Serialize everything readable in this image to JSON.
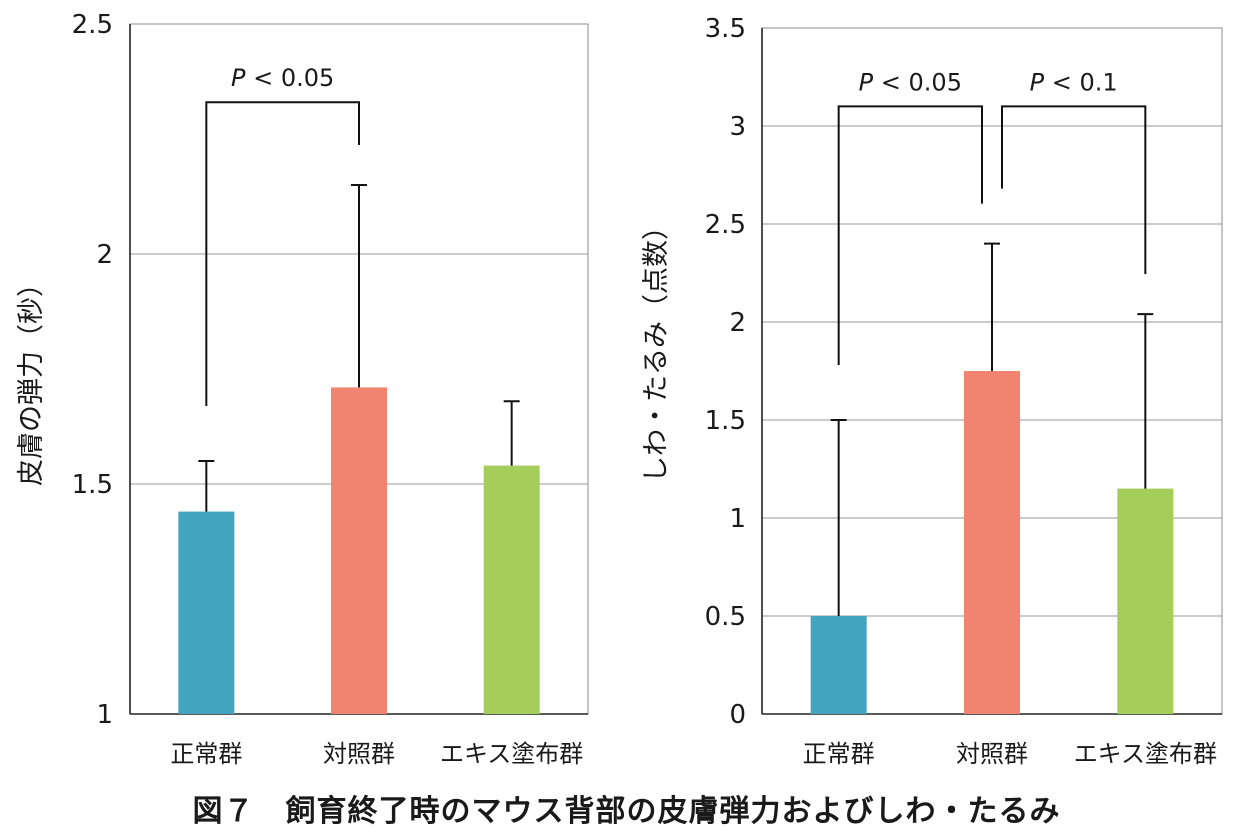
{
  "caption": "図７　飼育終了時のマウス背部の皮膚弾力およびしわ・たるみ",
  "chart_data": [
    {
      "type": "bar",
      "ylabel": "皮膚の弾力（秒）",
      "categories": [
        "正常群",
        "対照群",
        "エキス塗布群"
      ],
      "values": [
        1.44,
        1.71,
        1.54
      ],
      "errors": [
        0.11,
        0.44,
        0.14
      ],
      "ylim": [
        1,
        2.5
      ],
      "yticks": [
        1,
        1.5,
        2,
        2.5
      ],
      "ytick_labels": [
        "1",
        "1.5",
        "2",
        "2.5"
      ],
      "colors": [
        "#42a4be",
        "#f08470",
        "#a4cd59"
      ],
      "grid": true,
      "significance": [
        {
          "from": 0,
          "to": 1,
          "p": "P",
          "label": " < 0.05",
          "y_bracket": 2.33
        }
      ]
    },
    {
      "type": "bar",
      "ylabel": "しわ・たるみ（点数）",
      "categories": [
        "正常群",
        "対照群",
        "エキス塗布群"
      ],
      "values": [
        0.5,
        1.75,
        1.15
      ],
      "errors": [
        1.0,
        0.65,
        0.89
      ],
      "ylim": [
        0,
        3.5
      ],
      "yticks": [
        0,
        0.5,
        1,
        1.5,
        2,
        2.5,
        3,
        3.5
      ],
      "ytick_labels": [
        "0",
        "0.5",
        "1",
        "1.5",
        "2",
        "2.5",
        "3",
        "3.5"
      ],
      "colors": [
        "#42a4be",
        "#f08470",
        "#a4cd59"
      ],
      "grid": true,
      "significance": [
        {
          "from": 0,
          "to": 1,
          "p": "P",
          "label": " < 0.05",
          "y_bracket": 3.1
        },
        {
          "from": 1,
          "to": 2,
          "p": "P",
          "label": " < 0.1",
          "y_bracket": 3.1
        }
      ]
    }
  ]
}
